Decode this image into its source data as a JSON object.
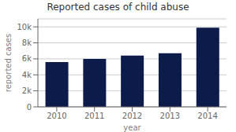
{
  "chart_data": {
    "type": "bar",
    "title": "Reported cases of child abuse",
    "xlabel": "year",
    "ylabel": "reported cases",
    "categories": [
      "2010",
      "2011",
      "2012",
      "2013",
      "2014"
    ],
    "values": [
      5600,
      6000,
      6400,
      6700,
      9900
    ],
    "color": "#0d1b4b",
    "ylim": [
      0,
      11000
    ],
    "yticks": [
      0,
      {
        "value": 2000,
        "label": "2k"
      },
      {
        "value": 4000,
        "label": "4k"
      },
      {
        "value": 6000,
        "label": "6k"
      },
      {
        "value": 8000,
        "label": "8k"
      },
      {
        "value": 10000,
        "label": "10k"
      }
    ],
    "grid": true
  }
}
